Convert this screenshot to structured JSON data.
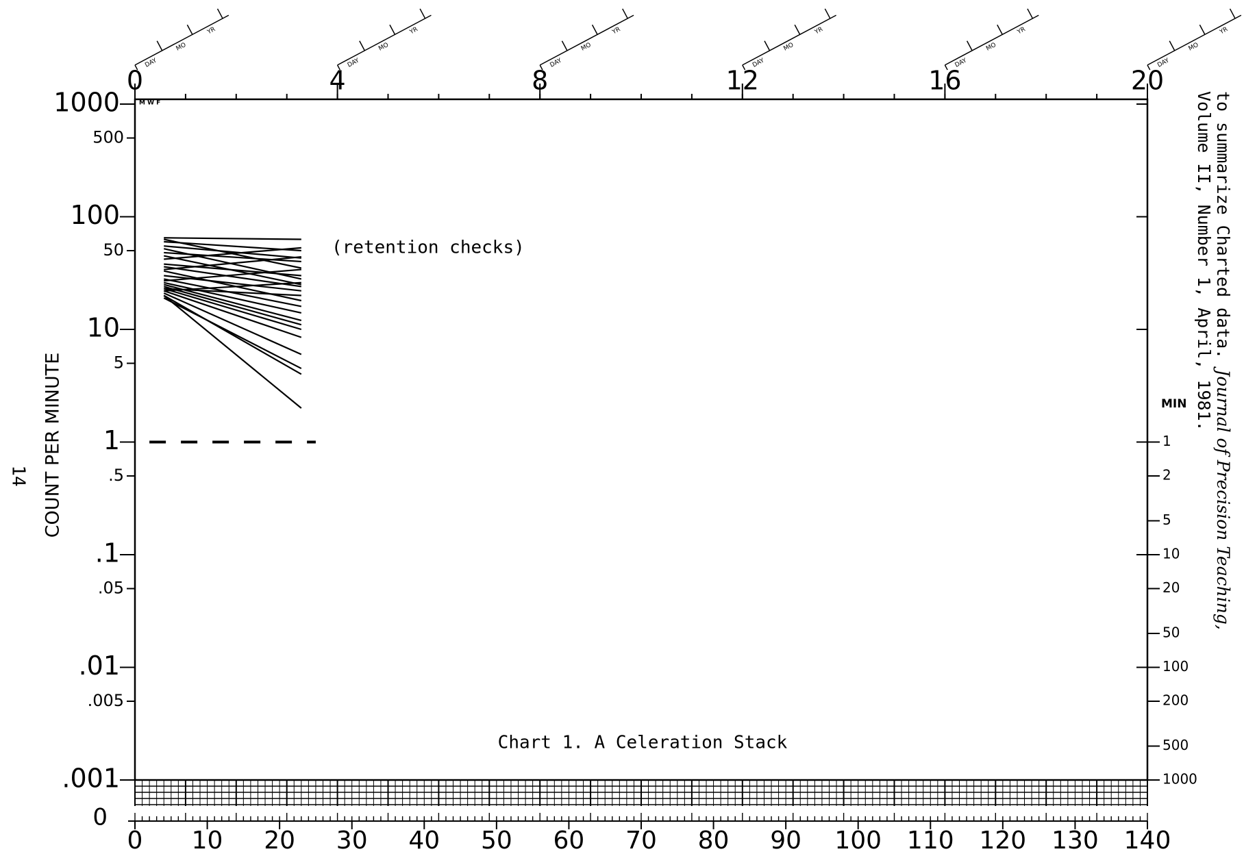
{
  "chart_data": {
    "type": "line",
    "title": "Chart 1. A Celeration Stack",
    "annotation": "(retention checks)",
    "ylabel": "COUNT PER MINUTE",
    "log_y": true,
    "color": "#000000",
    "xlim": [
      0,
      140
    ],
    "xticks": [
      0,
      10,
      20,
      30,
      40,
      50,
      60,
      70,
      80,
      90,
      100,
      110,
      120,
      130,
      140
    ],
    "ylim": [
      0.001,
      1000
    ],
    "yticks": [
      1000,
      500,
      100,
      50,
      10,
      5,
      1,
      {
        "value": 0.5,
        "label": ".5"
      },
      {
        "value": 0.1,
        "label": ".1"
      },
      {
        "value": 0.05,
        "label": ".05"
      },
      {
        "value": 0.01,
        "label": ".01"
      },
      {
        "value": 0.005,
        "label": ".005"
      },
      {
        "value": 0.001,
        "label": ".001"
      }
    ],
    "zero_label": "0",
    "x2lim": [
      0,
      20
    ],
    "x2ticks": [
      0,
      4,
      8,
      12,
      16,
      20
    ],
    "date_labels": [
      "DAY",
      "MO",
      "YR"
    ],
    "day_labels": "M W F",
    "y2label": "MIN",
    "y2lim": [
      1,
      1000
    ],
    "y2ticks": [
      1,
      2,
      5,
      10,
      20,
      50,
      100,
      200,
      500,
      1000
    ],
    "x": [
      4,
      23
    ],
    "series": [
      {
        "values": [
          65,
          63
        ]
      },
      {
        "values": [
          63,
          35
        ]
      },
      {
        "values": [
          60,
          50
        ]
      },
      {
        "values": [
          55,
          43
        ]
      },
      {
        "values": [
          52,
          28
        ]
      },
      {
        "values": [
          48,
          40
        ]
      },
      {
        "values": [
          45,
          25
        ]
      },
      {
        "values": [
          42,
          53
        ]
      },
      {
        "values": [
          38,
          30
        ]
      },
      {
        "values": [
          36,
          24
        ]
      },
      {
        "values": [
          34,
          44
        ]
      },
      {
        "values": [
          33,
          18
        ]
      },
      {
        "values": [
          30,
          22
        ]
      },
      {
        "values": [
          28,
          16
        ]
      },
      {
        "values": [
          27,
          34
        ]
      },
      {
        "values": [
          26,
          14
        ]
      },
      {
        "values": [
          25,
          12
        ]
      },
      {
        "values": [
          24,
          11
        ]
      },
      {
        "values": [
          23,
          10
        ]
      },
      {
        "values": [
          22,
          26
        ]
      },
      {
        "values": [
          22,
          8.5
        ]
      },
      {
        "values": [
          21,
          6
        ]
      },
      {
        "values": [
          20,
          4
        ]
      },
      {
        "values": [
          20,
          2
        ]
      },
      {
        "values": [
          19,
          4.5
        ]
      },
      {
        "values": [
          23,
          20
        ]
      }
    ],
    "record_floor": 1,
    "record_floor_x": [
      2,
      25
    ]
  },
  "citation": {
    "line1_start": "to summarize Charted data. ",
    "line1_journal": "Journal of Precision Teaching,",
    "line2": "Volume II, Number 1, April, 1981."
  },
  "page_number": "14"
}
